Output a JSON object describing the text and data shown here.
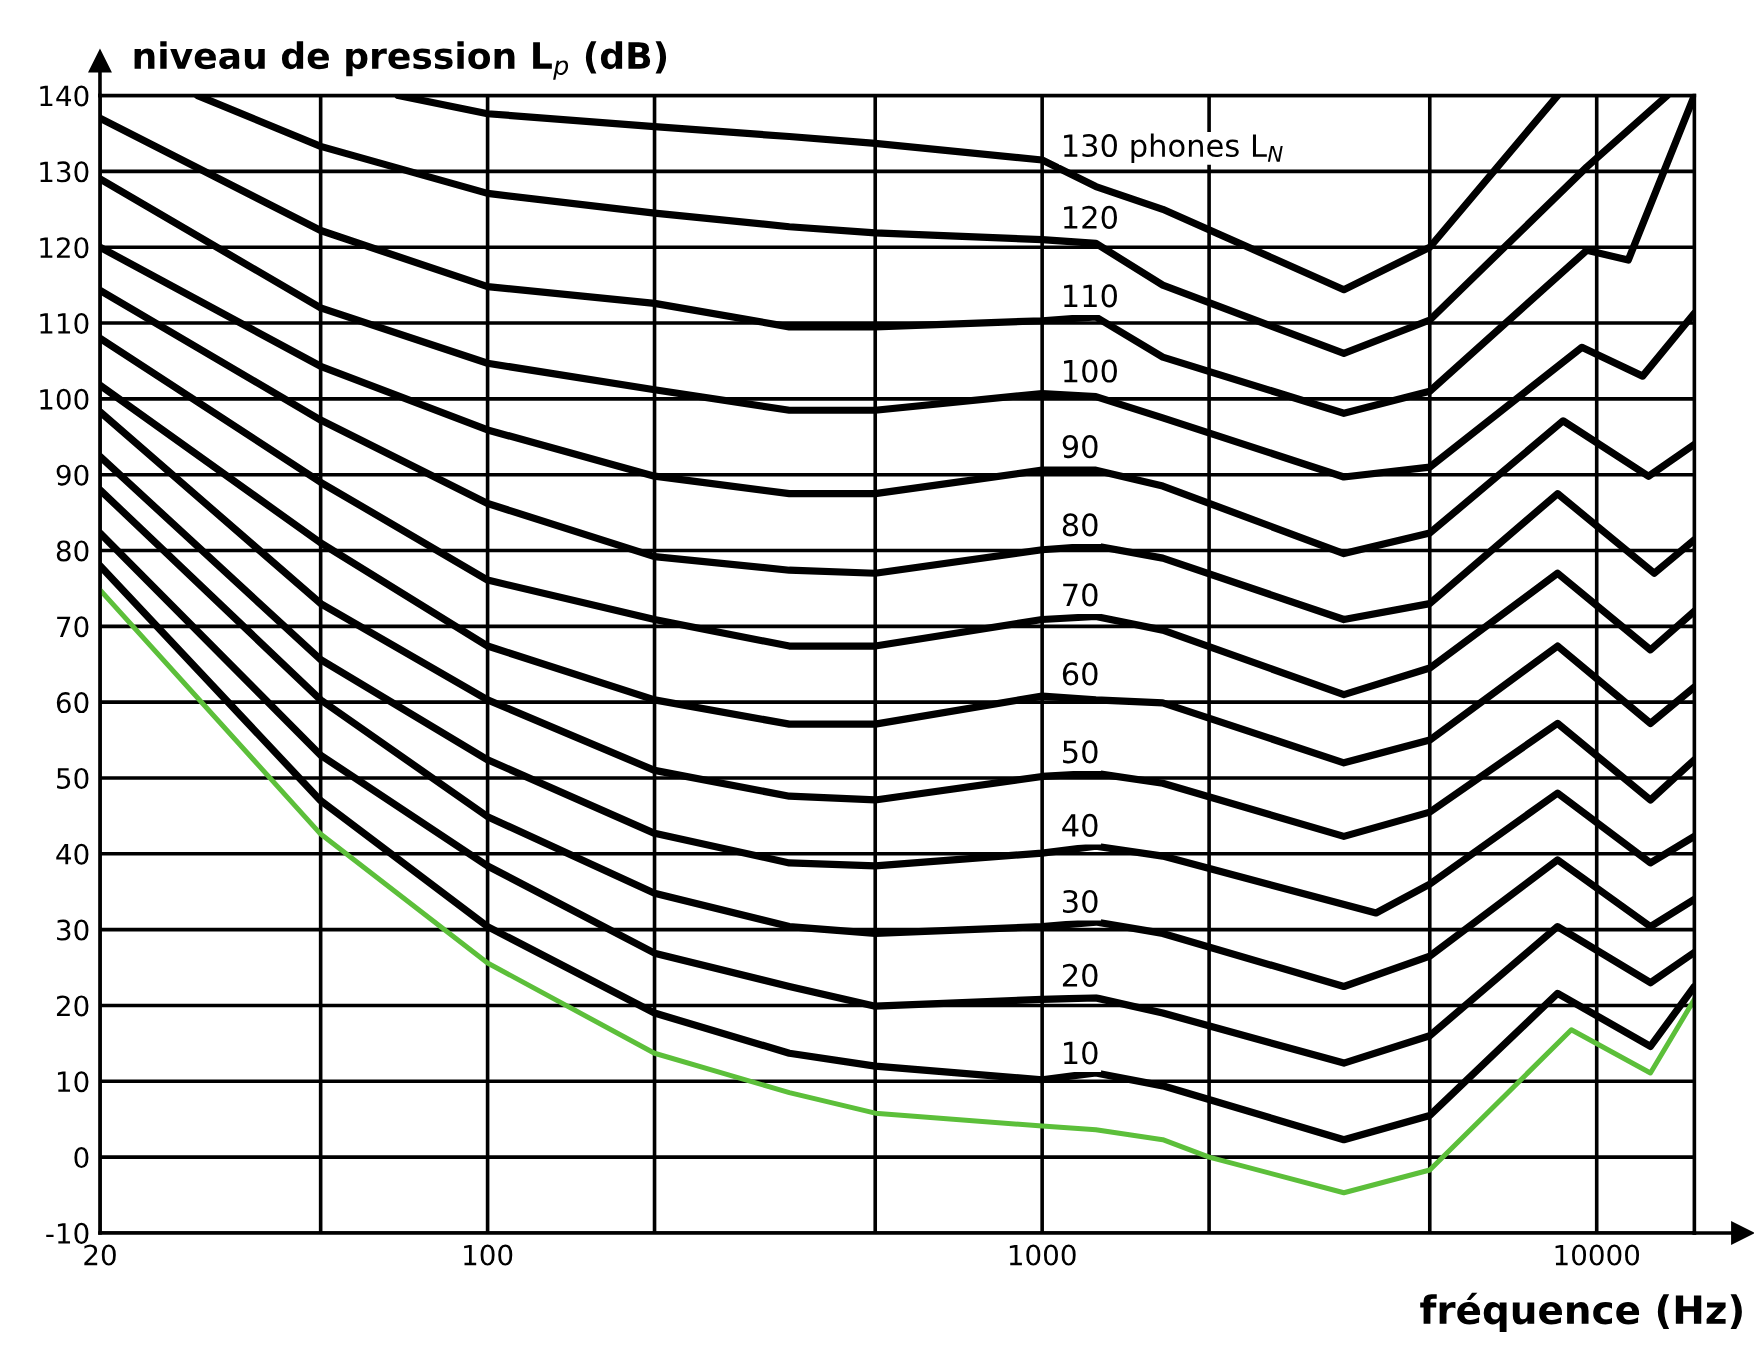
{
  "chart_data": {
    "type": "line",
    "ylabel": "niveau de pression L$_{p}$ (dB)",
    "xlabel": "fréquence (Hz)",
    "log": "x",
    "xlim": [
      20,
      15000
    ],
    "xticks": [
      20,
      {
        "value": 50,
        "label": null
      },
      100,
      {
        "value": 200,
        "label": null
      },
      {
        "value": 500,
        "label": null
      },
      1000,
      {
        "value": 2000,
        "label": null
      },
      {
        "value": 5000,
        "label": null
      },
      10000
    ],
    "ylim": [
      -10,
      140
    ],
    "yticks": [
      -10,
      0,
      10,
      20,
      30,
      40,
      50,
      60,
      70,
      80,
      90,
      100,
      110,
      120,
      130,
      140
    ],
    "grid": true,
    "legend": false,
    "marker": "none",
    "line_style": "solid",
    "series": [
      {
        "name": "130 phones L$_{N}$",
        "color": "#000000",
        "x": [
          69,
          100,
          200,
          350,
          500,
          1000,
          1250,
          1650,
          3500,
          5000,
          8500
        ],
        "values": [
          140,
          137.6,
          135.9,
          134.6,
          133.7,
          131.5,
          128,
          125,
          114.4,
          120,
          140
        ]
      },
      {
        "name": "120",
        "color": "#000000",
        "x": [
          30,
          50,
          100,
          200,
          350,
          500,
          1000,
          1250,
          1650,
          3500,
          5000,
          9600,
          13400
        ],
        "values": [
          140,
          133.3,
          127.1,
          124.5,
          122.7,
          121.9,
          121,
          120.5,
          115,
          106,
          110.4,
          130.6,
          140
        ]
      },
      {
        "name": "110",
        "color": "#000000",
        "x": [
          20,
          50,
          100,
          200,
          350,
          500,
          1000,
          1250,
          1650,
          3500,
          5000,
          9600,
          11400,
          15000
        ],
        "values": [
          137,
          122.2,
          114.8,
          112.6,
          109.5,
          109.5,
          110.3,
          110.8,
          105.5,
          98.1,
          101,
          119.6,
          118.3,
          140
        ]
      },
      {
        "name": "100",
        "color": "#000000",
        "x": [
          20,
          50,
          100,
          200,
          350,
          500,
          1000,
          1250,
          1650,
          3500,
          5000,
          9400,
          12100,
          15000
        ],
        "values": [
          129,
          112,
          104.7,
          101.2,
          98.5,
          98.5,
          100.7,
          100.3,
          97.5,
          89.7,
          91,
          106.8,
          103,
          111.3
        ]
      },
      {
        "name": "90",
        "color": "#000000",
        "x": [
          20,
          50,
          100,
          200,
          350,
          500,
          1000,
          1250,
          1650,
          3500,
          5000,
          8700,
          12400,
          15000
        ],
        "values": [
          120,
          104.3,
          95.9,
          89.8,
          87.5,
          87.5,
          90.6,
          90.6,
          88.5,
          79.6,
          82.3,
          97.1,
          89.8,
          94
        ]
      },
      {
        "name": "80",
        "color": "#000000",
        "x": [
          20,
          50,
          100,
          200,
          350,
          500,
          1000,
          1250,
          1650,
          3500,
          5000,
          8500,
          12700,
          15000
        ],
        "values": [
          114.3,
          97.2,
          86.2,
          79.2,
          77.4,
          77,
          80.1,
          80.6,
          79,
          70.9,
          73,
          87.5,
          77,
          81.4
        ]
      },
      {
        "name": "70",
        "color": "#000000",
        "x": [
          20,
          50,
          100,
          200,
          350,
          500,
          1000,
          1250,
          1650,
          3500,
          5000,
          8500,
          12500,
          15000
        ],
        "values": [
          108,
          89,
          76.1,
          70.9,
          67.4,
          67.4,
          70.9,
          71.3,
          69.5,
          61,
          64.5,
          77,
          66.9,
          72
        ]
      },
      {
        "name": "60",
        "color": "#000000",
        "x": [
          20,
          50,
          100,
          200,
          350,
          500,
          1000,
          1250,
          1650,
          3500,
          5000,
          8500,
          12500,
          15000
        ],
        "values": [
          101.8,
          81,
          67.4,
          60.3,
          57.1,
          57.1,
          60.8,
          60.3,
          59.9,
          52,
          55,
          67.4,
          57.2,
          62
        ]
      },
      {
        "name": "50",
        "color": "#000000",
        "x": [
          20,
          50,
          100,
          200,
          350,
          500,
          1000,
          1250,
          1650,
          3500,
          5000,
          8500,
          12500,
          15000
        ],
        "values": [
          98.3,
          73,
          60.3,
          51,
          47.6,
          47.1,
          50.2,
          50.6,
          49.3,
          42.3,
          45.5,
          57.2,
          47.1,
          52.4
        ]
      },
      {
        "name": "40",
        "color": "#000000",
        "x": [
          20,
          50,
          100,
          200,
          350,
          500,
          1000,
          1250,
          1650,
          4000,
          5000,
          8500,
          12500,
          15000
        ],
        "values": [
          92.4,
          65.6,
          52.4,
          42.7,
          38.8,
          38.4,
          40.1,
          41,
          39.7,
          32.2,
          36,
          48,
          38.8,
          42.3
        ]
      },
      {
        "name": "30",
        "color": "#000000",
        "x": [
          20,
          50,
          100,
          200,
          350,
          500,
          1000,
          1250,
          1650,
          3500,
          5000,
          8500,
          12500,
          15000
        ],
        "values": [
          88,
          60.3,
          44.9,
          34.8,
          30.4,
          29.5,
          30.4,
          31,
          29.5,
          22.5,
          26.5,
          39.2,
          30.4,
          34
        ]
      },
      {
        "name": "20",
        "color": "#000000",
        "x": [
          20,
          50,
          100,
          200,
          350,
          500,
          1000,
          1250,
          1650,
          3500,
          5000,
          8500,
          12500,
          15000
        ],
        "values": [
          82.3,
          53,
          38.4,
          26.9,
          22.5,
          19.9,
          20.8,
          21,
          19,
          12.4,
          16,
          30.4,
          23,
          27
        ]
      },
      {
        "name": "10",
        "color": "#000000",
        "x": [
          20,
          50,
          100,
          200,
          350,
          500,
          1000,
          1250,
          1650,
          3500,
          5000,
          8500,
          12500,
          15000
        ],
        "values": [
          78,
          47,
          30.4,
          19,
          13.7,
          12,
          10.2,
          11.1,
          9.4,
          2.3,
          5.5,
          21.6,
          14.6,
          22.5
        ]
      },
      {
        "color": "#5cbf3a",
        "x": [
          20,
          50,
          100,
          200,
          350,
          500,
          1000,
          1250,
          1650,
          2000,
          3500,
          5000,
          9000,
          12500,
          15000
        ],
        "values": [
          74.8,
          42.6,
          25.6,
          13.7,
          8.5,
          5.8,
          4.1,
          3.6,
          2.3,
          0,
          -4.7,
          -1.7,
          16.8,
          11.1,
          20.8
        ]
      }
    ]
  }
}
